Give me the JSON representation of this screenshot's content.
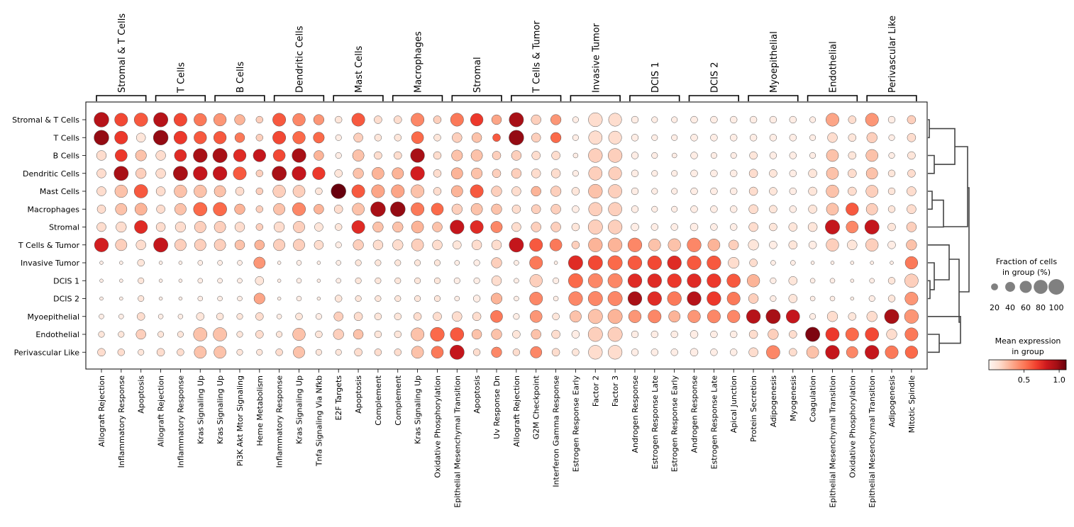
{
  "chart_data": {
    "type": "dotplot",
    "rows": [
      "Stromal & T Cells",
      "T Cells",
      "B Cells",
      "Dendritic Cells",
      "Mast Cells",
      "Macrophages",
      "Stromal",
      "T Cells & Tumor",
      "Invasive Tumor",
      "DCIS 1",
      "DCIS 2",
      "Myoepithelial",
      "Endothelial",
      "Perivascular Like"
    ],
    "columns": [
      "Allograft Rejection",
      "Inflammatory Response",
      "Apoptosis",
      "Allograft Rejection",
      "Inflammatory Response",
      "Kras Signaling Up",
      "Kras Signaling Up",
      "Pi3K Akt Mtor Signaling",
      "Heme Metabolism",
      "Inflammatory Response",
      "Kras Signaling Up",
      "Tnfa Signaling Via Nfkb",
      "E2F Targets",
      "Apoptosis",
      "Complement",
      "Complement",
      "Kras Signaling Up",
      "Oxidative Phosphorylation",
      "Epithelial Mesenchymal Transition",
      "Apoptosis",
      "Uv Response Dn",
      "Allograft Rejection",
      "G2M Checkpoint",
      "Interferon Gamma Response",
      "Estrogen Response Early",
      "Factor 2",
      "Factor 3",
      "Androgen Response",
      "Estrogen Response Late",
      "Estrogen Response Early",
      "Androgen Response",
      "Estrogen Response Late",
      "Apical Junction",
      "Protein Secretion",
      "Adipogenesis",
      "Myogenesis",
      "Coagulation",
      "Epithelial Mesenchymal Transition",
      "Oxidative Phosphorylation",
      "Epithelial Mesenchymal Transition",
      "Adipogenesis",
      "Mitotic Spindle"
    ],
    "groups": [
      {
        "label": "Stromal & T Cells",
        "start": 0,
        "end": 2
      },
      {
        "label": "T Cells",
        "start": 3,
        "end": 5
      },
      {
        "label": "B Cells",
        "start": 6,
        "end": 8
      },
      {
        "label": "Dendritic Cells",
        "start": 9,
        "end": 11
      },
      {
        "label": "Mast Cells",
        "start": 12,
        "end": 14
      },
      {
        "label": "Macrophages",
        "start": 15,
        "end": 17
      },
      {
        "label": "Stromal",
        "start": 18,
        "end": 20
      },
      {
        "label": "T Cells & Tumor",
        "start": 21,
        "end": 23
      },
      {
        "label": "Invasive Tumor",
        "start": 24,
        "end": 26
      },
      {
        "label": "DCIS 1",
        "start": 27,
        "end": 29
      },
      {
        "label": "DCIS 2",
        "start": 30,
        "end": 32
      },
      {
        "label": "Myoepithelial",
        "start": 33,
        "end": 35
      },
      {
        "label": "Endothelial",
        "start": 36,
        "end": 38
      },
      {
        "label": "Perivascular Like",
        "start": 39,
        "end": 41
      }
    ],
    "fraction_pct": [
      [
        90,
        70,
        75,
        85,
        70,
        65,
        65,
        45,
        20,
        70,
        65,
        45,
        20,
        70,
        25,
        25,
        70,
        25,
        70,
        65,
        40,
        85,
        40,
        45,
        15,
        80,
        70,
        20,
        15,
        15,
        20,
        20,
        20,
        20,
        20,
        20,
        15,
        70,
        25,
        70,
        20,
        30
      ],
      [
        90,
        70,
        35,
        90,
        70,
        65,
        65,
        40,
        20,
        70,
        65,
        50,
        15,
        35,
        20,
        20,
        60,
        20,
        40,
        40,
        25,
        90,
        35,
        45,
        15,
        75,
        70,
        20,
        15,
        15,
        20,
        20,
        20,
        20,
        20,
        20,
        15,
        40,
        25,
        45,
        15,
        30
      ],
      [
        40,
        60,
        50,
        40,
        60,
        80,
        85,
        65,
        65,
        60,
        80,
        40,
        15,
        55,
        25,
        25,
        80,
        25,
        50,
        55,
        30,
        40,
        30,
        30,
        10,
        80,
        80,
        20,
        15,
        10,
        20,
        15,
        15,
        25,
        20,
        20,
        15,
        60,
        25,
        60,
        15,
        25
      ],
      [
        35,
        85,
        45,
        40,
        85,
        80,
        80,
        70,
        20,
        85,
        80,
        65,
        25,
        45,
        60,
        55,
        80,
        25,
        55,
        50,
        30,
        40,
        35,
        35,
        15,
        75,
        70,
        20,
        15,
        15,
        20,
        20,
        20,
        30,
        25,
        20,
        30,
        60,
        30,
        55,
        20,
        25
      ],
      [
        35,
        65,
        75,
        35,
        65,
        65,
        55,
        30,
        20,
        65,
        60,
        20,
        90,
        70,
        70,
        70,
        70,
        25,
        55,
        70,
        45,
        35,
        40,
        45,
        25,
        80,
        75,
        20,
        15,
        15,
        20,
        20,
        20,
        30,
        25,
        20,
        30,
        65,
        30,
        60,
        20,
        35
      ],
      [
        30,
        55,
        60,
        30,
        55,
        75,
        75,
        45,
        20,
        55,
        70,
        40,
        30,
        60,
        90,
        90,
        70,
        60,
        45,
        55,
        45,
        30,
        35,
        40,
        20,
        75,
        75,
        20,
        15,
        15,
        20,
        20,
        20,
        35,
        25,
        20,
        30,
        60,
        65,
        55,
        20,
        35
      ],
      [
        35,
        45,
        70,
        35,
        45,
        55,
        55,
        40,
        20,
        45,
        55,
        30,
        20,
        70,
        45,
        45,
        60,
        40,
        80,
        70,
        55,
        35,
        40,
        40,
        25,
        85,
        80,
        25,
        20,
        20,
        25,
        20,
        20,
        35,
        25,
        30,
        35,
        85,
        60,
        85,
        25,
        40
      ],
      [
        80,
        55,
        40,
        85,
        55,
        55,
        55,
        40,
        40,
        55,
        55,
        35,
        15,
        45,
        40,
        45,
        60,
        40,
        30,
        40,
        40,
        85,
        70,
        60,
        25,
        80,
        80,
        80,
        60,
        65,
        80,
        60,
        40,
        45,
        25,
        30,
        25,
        65,
        40,
        65,
        25,
        45
      ],
      [
        5,
        5,
        20,
        5,
        5,
        10,
        10,
        10,
        55,
        5,
        10,
        5,
        10,
        15,
        15,
        15,
        15,
        15,
        10,
        15,
        45,
        10,
        70,
        5,
        85,
        85,
        85,
        80,
        80,
        80,
        80,
        80,
        50,
        25,
        10,
        10,
        5,
        5,
        5,
        5,
        5,
        65
      ],
      [
        5,
        5,
        15,
        5,
        5,
        10,
        10,
        10,
        30,
        5,
        10,
        5,
        10,
        15,
        15,
        15,
        15,
        15,
        15,
        15,
        40,
        10,
        65,
        15,
        85,
        85,
        85,
        80,
        80,
        80,
        80,
        80,
        75,
        65,
        15,
        30,
        10,
        10,
        5,
        10,
        20,
        75
      ],
      [
        5,
        5,
        15,
        5,
        5,
        10,
        10,
        10,
        50,
        5,
        10,
        5,
        20,
        15,
        15,
        15,
        15,
        15,
        10,
        20,
        50,
        10,
        70,
        10,
        80,
        85,
        85,
        80,
        80,
        80,
        80,
        80,
        70,
        40,
        15,
        30,
        10,
        10,
        5,
        15,
        20,
        70
      ],
      [
        10,
        10,
        25,
        10,
        10,
        25,
        20,
        15,
        25,
        10,
        20,
        15,
        35,
        30,
        20,
        20,
        25,
        30,
        40,
        30,
        60,
        15,
        60,
        20,
        55,
        85,
        85,
        65,
        70,
        55,
        65,
        70,
        65,
        80,
        85,
        75,
        15,
        45,
        25,
        45,
        85,
        80
      ],
      [
        15,
        15,
        40,
        15,
        15,
        75,
        75,
        15,
        25,
        15,
        65,
        20,
        45,
        40,
        20,
        20,
        70,
        80,
        75,
        40,
        45,
        25,
        40,
        30,
        25,
        85,
        85,
        20,
        20,
        20,
        25,
        20,
        20,
        30,
        45,
        25,
        85,
        75,
        70,
        75,
        45,
        70
      ],
      [
        25,
        20,
        15,
        25,
        20,
        60,
        60,
        15,
        15,
        20,
        55,
        15,
        15,
        25,
        20,
        20,
        60,
        60,
        85,
        20,
        45,
        20,
        55,
        25,
        20,
        80,
        80,
        20,
        20,
        20,
        25,
        20,
        20,
        35,
        75,
        25,
        60,
        80,
        55,
        80,
        70,
        65
      ]
    ],
    "mean_expression": [
      [
        0.9,
        0.65,
        0.6,
        0.9,
        0.65,
        0.5,
        0.4,
        0.3,
        0.2,
        0.6,
        0.45,
        0.4,
        0.1,
        0.6,
        0.15,
        0.15,
        0.45,
        0.2,
        0.5,
        0.7,
        0.35,
        0.95,
        0.2,
        0.4,
        0.05,
        0.15,
        0.15,
        0.05,
        0.05,
        0.05,
        0.05,
        0.05,
        0.05,
        0.05,
        0.05,
        0.05,
        0.05,
        0.35,
        0.15,
        0.4,
        0.05,
        0.2
      ],
      [
        1.0,
        0.7,
        0.1,
        1.0,
        0.7,
        0.6,
        0.6,
        0.5,
        0.2,
        0.65,
        0.55,
        0.55,
        0.05,
        0.2,
        0.1,
        0.1,
        0.55,
        0.1,
        0.2,
        0.25,
        0.6,
        1.0,
        0.2,
        0.55,
        0.05,
        0.15,
        0.15,
        0.05,
        0.05,
        0.05,
        0.05,
        0.05,
        0.05,
        0.05,
        0.05,
        0.05,
        0.05,
        0.15,
        0.1,
        0.2,
        0.05,
        0.15
      ],
      [
        0.15,
        0.7,
        0.25,
        0.15,
        0.75,
        0.95,
        0.95,
        0.75,
        0.85,
        0.65,
        0.95,
        0.3,
        0.05,
        0.25,
        0.15,
        0.15,
        0.95,
        0.15,
        0.25,
        0.25,
        0.2,
        0.2,
        0.15,
        0.15,
        0.05,
        0.2,
        0.2,
        0.05,
        0.05,
        0.05,
        0.05,
        0.05,
        0.05,
        0.1,
        0.05,
        0.05,
        0.05,
        0.25,
        0.1,
        0.25,
        0.05,
        0.1
      ],
      [
        0.15,
        0.95,
        0.2,
        0.15,
        0.95,
        0.85,
        0.85,
        0.6,
        0.2,
        0.95,
        0.85,
        0.7,
        0.1,
        0.25,
        0.3,
        0.3,
        0.8,
        0.15,
        0.3,
        0.25,
        0.2,
        0.2,
        0.15,
        0.15,
        0.05,
        0.2,
        0.2,
        0.05,
        0.05,
        0.05,
        0.05,
        0.05,
        0.05,
        0.15,
        0.1,
        0.05,
        0.1,
        0.25,
        0.15,
        0.25,
        0.1,
        0.15
      ],
      [
        0.15,
        0.25,
        0.6,
        0.15,
        0.25,
        0.25,
        0.25,
        0.15,
        0.2,
        0.2,
        0.2,
        0.1,
        1.15,
        0.6,
        0.35,
        0.35,
        0.25,
        0.15,
        0.3,
        0.6,
        0.2,
        0.15,
        0.3,
        0.2,
        0.1,
        0.25,
        0.2,
        0.05,
        0.05,
        0.05,
        0.05,
        0.05,
        0.05,
        0.15,
        0.1,
        0.05,
        0.1,
        0.25,
        0.15,
        0.2,
        0.1,
        0.15
      ],
      [
        0.15,
        0.25,
        0.3,
        0.15,
        0.25,
        0.55,
        0.55,
        0.3,
        0.2,
        0.25,
        0.45,
        0.3,
        0.15,
        0.25,
        0.95,
        1.0,
        0.5,
        0.55,
        0.2,
        0.25,
        0.25,
        0.15,
        0.2,
        0.2,
        0.05,
        0.2,
        0.2,
        0.05,
        0.05,
        0.05,
        0.05,
        0.05,
        0.05,
        0.15,
        0.1,
        0.05,
        0.1,
        0.25,
        0.6,
        0.2,
        0.1,
        0.15
      ],
      [
        0.15,
        0.15,
        0.75,
        0.15,
        0.15,
        0.2,
        0.2,
        0.15,
        0.2,
        0.15,
        0.2,
        0.1,
        0.1,
        0.75,
        0.25,
        0.25,
        0.3,
        0.25,
        0.85,
        0.75,
        0.45,
        0.15,
        0.2,
        0.2,
        0.1,
        0.2,
        0.2,
        0.05,
        0.05,
        0.05,
        0.05,
        0.05,
        0.05,
        0.15,
        0.1,
        0.1,
        0.1,
        0.85,
        0.45,
        0.85,
        0.1,
        0.2
      ],
      [
        0.8,
        0.2,
        0.15,
        0.85,
        0.2,
        0.2,
        0.2,
        0.25,
        0.3,
        0.2,
        0.2,
        0.15,
        0.05,
        0.2,
        0.15,
        0.15,
        0.2,
        0.15,
        0.1,
        0.15,
        0.15,
        0.85,
        0.6,
        0.5,
        0.2,
        0.3,
        0.3,
        0.45,
        0.25,
        0.25,
        0.45,
        0.3,
        0.2,
        0.1,
        0.05,
        0.1,
        0.05,
        0.2,
        0.1,
        0.2,
        0.05,
        0.25
      ],
      [
        0.05,
        0.05,
        0.1,
        0.05,
        0.05,
        0.05,
        0.05,
        0.05,
        0.4,
        0.05,
        0.05,
        0.05,
        0.05,
        0.1,
        0.1,
        0.1,
        0.1,
        0.1,
        0.05,
        0.05,
        0.2,
        0.05,
        0.5,
        0.05,
        0.75,
        0.65,
        0.55,
        0.6,
        0.65,
        0.75,
        0.6,
        0.6,
        0.15,
        0.15,
        0.05,
        0.05,
        0.05,
        0.05,
        0.05,
        0.05,
        0.05,
        0.5
      ],
      [
        0.05,
        0.05,
        0.1,
        0.05,
        0.05,
        0.05,
        0.05,
        0.05,
        0.1,
        0.05,
        0.05,
        0.05,
        0.05,
        0.1,
        0.1,
        0.1,
        0.1,
        0.1,
        0.05,
        0.05,
        0.15,
        0.05,
        0.2,
        0.05,
        0.55,
        0.45,
        0.45,
        0.75,
        0.75,
        0.7,
        0.75,
        0.7,
        0.6,
        0.3,
        0.05,
        0.1,
        0.05,
        0.05,
        0.05,
        0.05,
        0.1,
        0.2
      ],
      [
        0.05,
        0.05,
        0.1,
        0.05,
        0.05,
        0.05,
        0.05,
        0.05,
        0.35,
        0.05,
        0.05,
        0.05,
        0.1,
        0.1,
        0.1,
        0.1,
        0.1,
        0.1,
        0.05,
        0.05,
        0.3,
        0.05,
        0.45,
        0.05,
        0.45,
        0.45,
        0.45,
        0.95,
        0.75,
        0.5,
        0.9,
        0.7,
        0.5,
        0.2,
        0.05,
        0.1,
        0.05,
        0.05,
        0.05,
        0.05,
        0.1,
        0.4
      ],
      [
        0.05,
        0.05,
        0.15,
        0.05,
        0.05,
        0.1,
        0.1,
        0.1,
        0.15,
        0.05,
        0.1,
        0.05,
        0.2,
        0.15,
        0.1,
        0.1,
        0.15,
        0.15,
        0.15,
        0.15,
        0.5,
        0.05,
        0.4,
        0.1,
        0.25,
        0.25,
        0.3,
        0.4,
        0.45,
        0.3,
        0.4,
        0.45,
        0.45,
        0.9,
        0.95,
        0.85,
        0.05,
        0.15,
        0.1,
        0.15,
        0.95,
        0.4
      ],
      [
        0.1,
        0.1,
        0.2,
        0.1,
        0.1,
        0.25,
        0.25,
        0.1,
        0.15,
        0.1,
        0.25,
        0.1,
        0.2,
        0.25,
        0.1,
        0.1,
        0.25,
        0.55,
        0.6,
        0.25,
        0.25,
        0.1,
        0.25,
        0.15,
        0.05,
        0.2,
        0.2,
        0.05,
        0.05,
        0.05,
        0.05,
        0.05,
        0.05,
        0.15,
        0.2,
        0.15,
        1.05,
        0.7,
        0.55,
        0.65,
        0.15,
        0.5
      ],
      [
        0.15,
        0.15,
        0.1,
        0.15,
        0.15,
        0.25,
        0.25,
        0.1,
        0.1,
        0.15,
        0.25,
        0.1,
        0.1,
        0.15,
        0.15,
        0.15,
        0.25,
        0.5,
        0.85,
        0.15,
        0.45,
        0.15,
        0.45,
        0.15,
        0.1,
        0.15,
        0.15,
        0.05,
        0.05,
        0.05,
        0.05,
        0.05,
        0.05,
        0.15,
        0.45,
        0.15,
        0.25,
        0.85,
        0.45,
        0.85,
        0.5,
        0.55
      ]
    ],
    "size_legend": {
      "title_line1": "Fraction of cells",
      "title_line2": "in group (%)",
      "values": [
        20,
        40,
        60,
        80,
        100
      ],
      "labels": [
        "20",
        "40",
        "60",
        "80",
        "100"
      ]
    },
    "color_legend": {
      "title_line1": "Mean expression",
      "title_line2": "in group",
      "range": [
        0,
        1.1
      ],
      "ticks": [
        0.5,
        1.0
      ],
      "tick_labels": [
        "0.5",
        "1.0"
      ],
      "colormap": "Reds",
      "colors": [
        "#fff5f0",
        "#fee0d2",
        "#fcbba1",
        "#fc9272",
        "#fb6a4a",
        "#ef3b2c",
        "#cb181d",
        "#a50f15",
        "#67000d"
      ]
    },
    "dendrogram": true,
    "grid": false
  }
}
